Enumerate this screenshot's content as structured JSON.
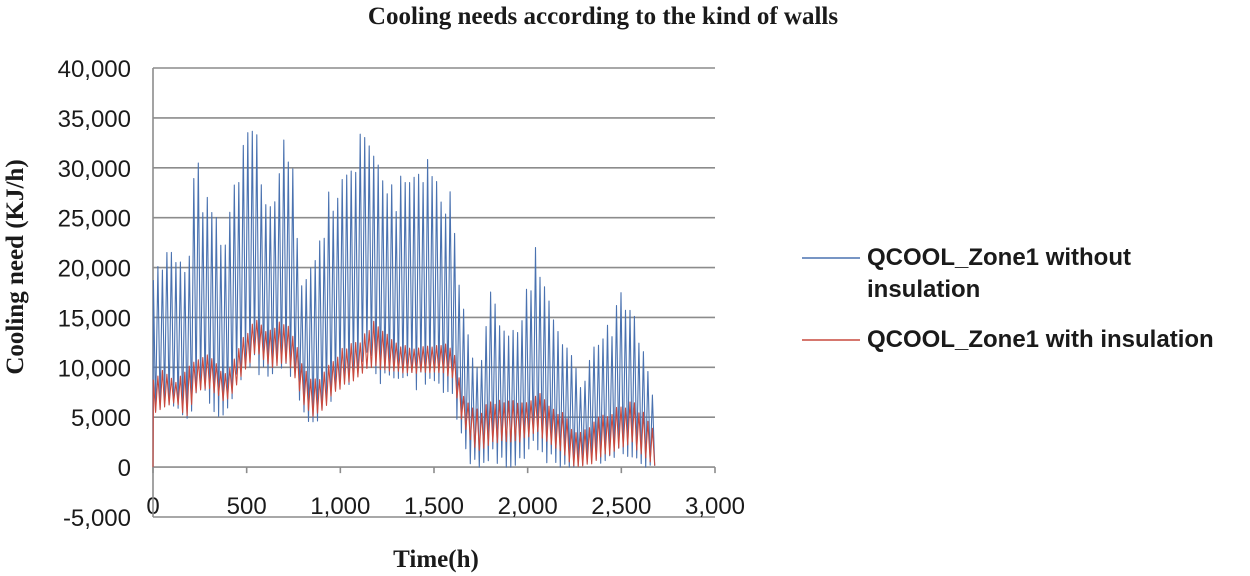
{
  "chart_data": {
    "type": "line",
    "title": "Cooling needs according to the kind of walls",
    "xlabel": "Time(h)",
    "ylabel": "Cooling need (KJ/h)",
    "xlim": [
      0,
      3000
    ],
    "ylim": [
      -5000,
      40000
    ],
    "x_ticks": [
      "0",
      "500",
      "1,000",
      "1,500",
      "2,000",
      "2,500",
      "3,000"
    ],
    "x_tick_values": [
      0,
      500,
      1000,
      1500,
      2000,
      2500,
      3000
    ],
    "y_ticks": [
      "-5,000",
      "0",
      "5,000",
      "10,000",
      "15,000",
      "20,000",
      "25,000",
      "30,000",
      "35,000",
      "40,000"
    ],
    "y_tick_values": [
      -5000,
      0,
      5000,
      10000,
      15000,
      20000,
      25000,
      30000,
      35000,
      40000
    ],
    "grid": true,
    "legend_position": "right",
    "series": [
      {
        "name": "QCOOL_Zone1  without insulation",
        "legend_lines": [
          "QCOOL_Zone1  without",
          "insulation"
        ],
        "color": "#4a72b0",
        "x": [
          0,
          60,
          120,
          180,
          230,
          280,
          330,
          380,
          430,
          480,
          520,
          550,
          600,
          650,
          700,
          750,
          800,
          850,
          900,
          950,
          1000,
          1050,
          1100,
          1150,
          1200,
          1250,
          1300,
          1350,
          1400,
          1450,
          1500,
          1550,
          1600,
          1650,
          1700,
          1750,
          1800,
          1850,
          1900,
          1950,
          2000,
          2050,
          2100,
          2150,
          2200,
          2250,
          2300,
          2350,
          2400,
          2450,
          2500,
          2550,
          2600,
          2650,
          2680
        ],
        "peaks": [
          19500,
          20500,
          22000,
          18000,
          30000,
          26000,
          24000,
          22000,
          27500,
          31000,
          34000,
          33000,
          25000,
          28000,
          32500,
          28000,
          18000,
          20000,
          22500,
          27000,
          27500,
          29500,
          31500,
          33000,
          30000,
          28500,
          27000,
          28500,
          27500,
          29500,
          28000,
          27000,
          26000,
          16500,
          12000,
          10000,
          18000,
          15000,
          13000,
          14500,
          17000,
          22000,
          16000,
          15000,
          12000,
          10000,
          8000,
          11500,
          12500,
          14000,
          16500,
          17000,
          12000,
          8500,
          5000
        ],
        "troughs": [
          5000,
          6500,
          6000,
          5000,
          7000,
          7500,
          6000,
          5000,
          8000,
          9500,
          11000,
          10500,
          9000,
          9500,
          10500,
          9000,
          5000,
          4500,
          6000,
          7000,
          8500,
          9000,
          10000,
          11000,
          9500,
          8500,
          8500,
          9000,
          8500,
          9000,
          8500,
          8000,
          7500,
          3000,
          500,
          0,
          1500,
          500,
          0,
          500,
          1000,
          2500,
          1000,
          500,
          0,
          0,
          0,
          500,
          500,
          1000,
          2000,
          1500,
          500,
          0,
          0
        ]
      },
      {
        "name": "QCOOL_Zone1 with insulation",
        "legend_lines": [
          "QCOOL_Zone1 with insulation"
        ],
        "color": "#c94a3e",
        "x": [
          0,
          60,
          120,
          180,
          230,
          280,
          330,
          380,
          430,
          480,
          520,
          550,
          600,
          650,
          700,
          750,
          800,
          850,
          900,
          950,
          1000,
          1050,
          1100,
          1150,
          1200,
          1250,
          1300,
          1350,
          1400,
          1450,
          1500,
          1550,
          1600,
          1650,
          1700,
          1750,
          1800,
          1850,
          1900,
          1950,
          2000,
          2050,
          2100,
          2150,
          2200,
          2250,
          2300,
          2350,
          2400,
          2450,
          2500,
          2550,
          2600,
          2650,
          2680
        ],
        "peaks": [
          9000,
          9500,
          8500,
          9500,
          10500,
          11500,
          10500,
          9500,
          10500,
          13000,
          14000,
          15000,
          13500,
          14000,
          14500,
          13000,
          10000,
          8500,
          9000,
          10500,
          11500,
          12000,
          12500,
          14000,
          14500,
          13000,
          12500,
          12000,
          12000,
          12000,
          12000,
          12500,
          12000,
          7500,
          6000,
          5500,
          6500,
          6500,
          6500,
          6500,
          6500,
          7500,
          6500,
          5500,
          5000,
          3500,
          4000,
          4500,
          5000,
          5500,
          6000,
          6500,
          5500,
          4500,
          3500
        ],
        "troughs": [
          5500,
          6000,
          6500,
          5000,
          7500,
          8000,
          7500,
          6500,
          7500,
          9500,
          10500,
          11500,
          10500,
          10000,
          10500,
          9500,
          6500,
          5000,
          5500,
          7000,
          8000,
          8500,
          9000,
          10000,
          10000,
          9500,
          9500,
          9500,
          9500,
          9500,
          9500,
          9500,
          9000,
          4500,
          2500,
          1500,
          2500,
          2500,
          2500,
          2500,
          3000,
          3500,
          2500,
          2000,
          1000,
          0,
          0,
          500,
          1000,
          1500,
          2000,
          2500,
          1500,
          500,
          0
        ]
      }
    ]
  }
}
